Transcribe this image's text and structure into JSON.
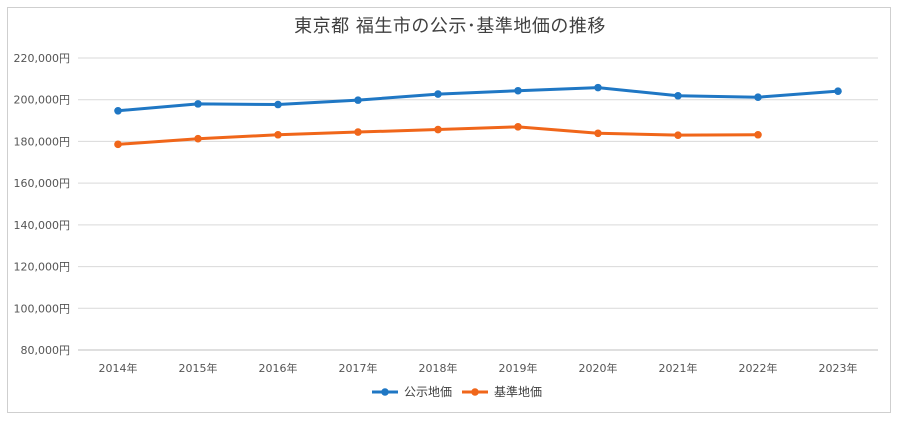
{
  "chart_data": {
    "type": "line",
    "title": "東京都 福生市の公示･基準地価の推移",
    "xlabel": "",
    "ylabel": "",
    "categories": [
      "2014年",
      "2015年",
      "2016年",
      "2017年",
      "2018年",
      "2019年",
      "2020年",
      "2021年",
      "2022年",
      "2023年"
    ],
    "ylim": [
      80000,
      220000
    ],
    "yticks": [
      80000,
      100000,
      120000,
      140000,
      160000,
      180000,
      200000,
      220000
    ],
    "ytick_labels": [
      "80,000円",
      "100,000円",
      "120,000円",
      "140,000円",
      "160,000円",
      "180,000円",
      "200,000円",
      "220,000円"
    ],
    "grid": true,
    "legend_position": "bottom",
    "series": [
      {
        "name": "公示地価",
        "color": "#1f77c4",
        "values": [
          194700,
          198000,
          197700,
          199800,
          202700,
          204300,
          205800,
          201900,
          201200,
          204100
        ]
      },
      {
        "name": "基準地価",
        "color": "#f0661a",
        "values": [
          178600,
          181300,
          183200,
          184500,
          185700,
          187000,
          183900,
          183000,
          183200,
          null
        ]
      }
    ]
  }
}
